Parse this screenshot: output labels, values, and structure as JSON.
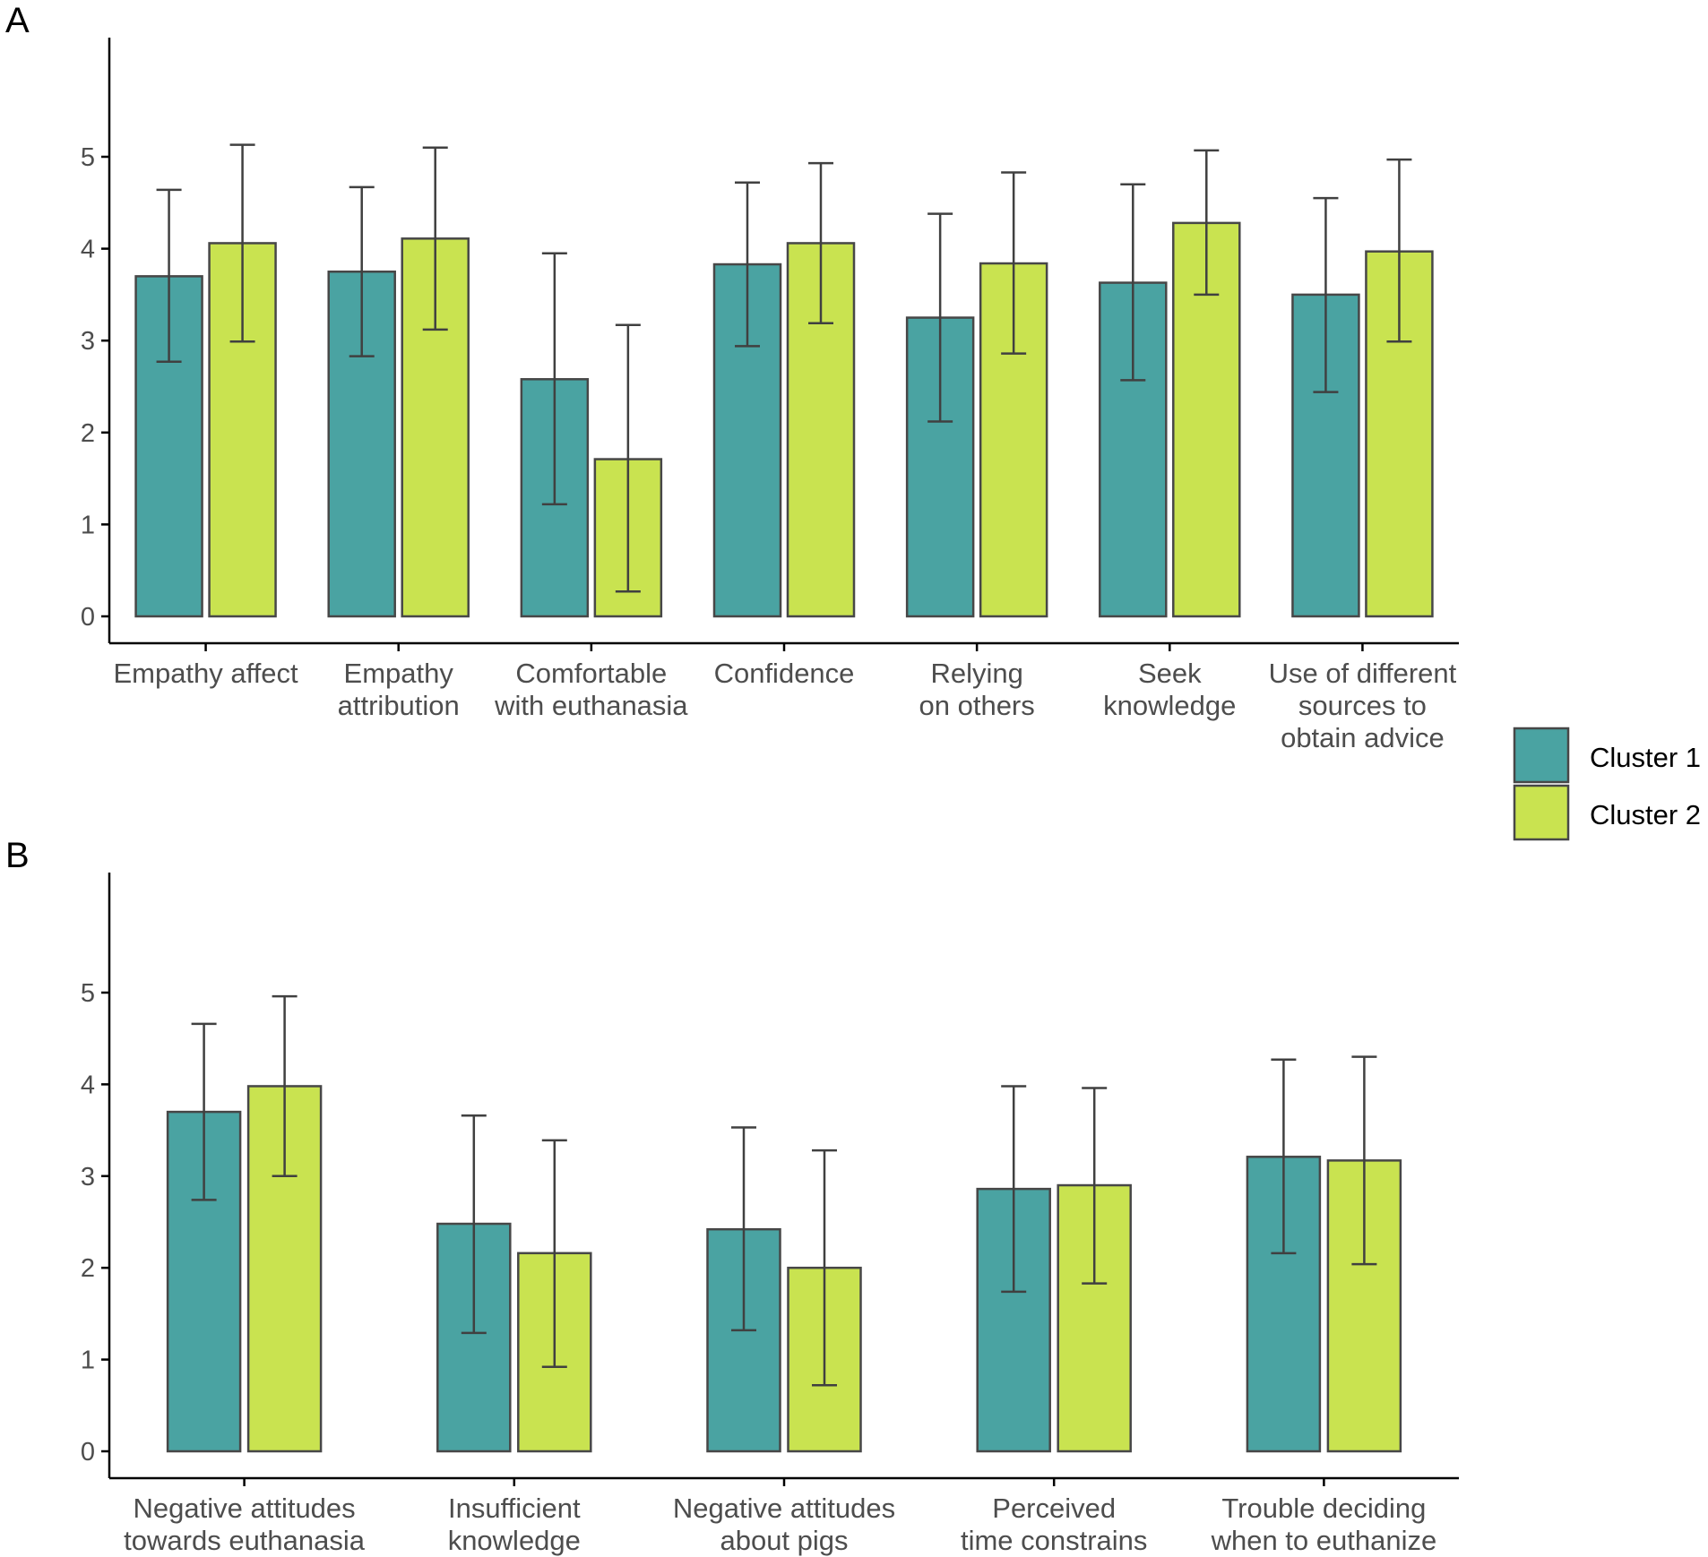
{
  "chart_data": [
    {
      "panel": "A",
      "type": "bar",
      "title": "",
      "xlabel": "",
      "ylabel": "",
      "ylim": [
        -0.3,
        6.45
      ],
      "yticks": [
        0,
        1,
        2,
        3,
        4,
        5
      ],
      "grid": false,
      "categories": [
        "Empathy affect",
        "Empathy attribution",
        "Comfortable with euthanasia",
        "Confidence",
        "Relying on others",
        "Seek knowledge",
        "Use of different sources to obtain advice"
      ],
      "category_label_lines": [
        [
          "Empathy affect"
        ],
        [
          "Empathy",
          "attribution"
        ],
        [
          "Comfortable",
          "with euthanasia"
        ],
        [
          "Confidence"
        ],
        [
          "Relying",
          "on others"
        ],
        [
          "Seek",
          "knowledge"
        ],
        [
          "Use of different",
          "sources to",
          "obtain advice"
        ]
      ],
      "series": [
        {
          "name": "Cluster 1",
          "values": [
            3.7,
            3.75,
            2.58,
            3.83,
            3.25,
            3.63,
            3.5
          ],
          "error_low": [
            2.77,
            2.83,
            1.22,
            2.94,
            2.12,
            2.57,
            2.44
          ],
          "error_high": [
            4.64,
            4.67,
            3.95,
            4.72,
            4.38,
            4.7,
            4.55
          ]
        },
        {
          "name": "Cluster 2",
          "values": [
            4.06,
            4.11,
            1.71,
            4.06,
            3.84,
            4.28,
            3.97
          ],
          "error_low": [
            2.99,
            3.12,
            0.27,
            3.19,
            2.86,
            3.5,
            2.99
          ],
          "error_high": [
            5.13,
            5.1,
            3.17,
            4.93,
            4.83,
            5.07,
            4.97
          ]
        }
      ]
    },
    {
      "panel": "B",
      "type": "bar",
      "title": "",
      "xlabel": "",
      "ylabel": "",
      "ylim": [
        -0.3,
        6.45
      ],
      "yticks": [
        0,
        1,
        2,
        3,
        4,
        5
      ],
      "grid": false,
      "categories": [
        "Negative attitudes towards euthanasia",
        "Insufficient knowledge",
        "Negative attitudes about pigs",
        "Perceived time constrains",
        "Trouble deciding when to euthanize"
      ],
      "category_label_lines": [
        [
          "Negative attitudes",
          "towards euthanasia"
        ],
        [
          "Insufficient",
          "knowledge"
        ],
        [
          "Negative attitudes",
          "about pigs"
        ],
        [
          "Perceived",
          "time constrains"
        ],
        [
          "Trouble deciding",
          "when to euthanize"
        ]
      ],
      "series": [
        {
          "name": "Cluster 1",
          "values": [
            3.7,
            2.48,
            2.42,
            2.86,
            3.21
          ],
          "error_low": [
            2.74,
            1.29,
            1.32,
            1.74,
            2.16
          ],
          "error_high": [
            4.66,
            3.66,
            3.53,
            3.98,
            4.27
          ]
        },
        {
          "name": "Cluster 2",
          "values": [
            3.98,
            2.16,
            2.0,
            2.9,
            3.17
          ],
          "error_low": [
            3.0,
            0.92,
            0.72,
            1.83,
            2.04
          ],
          "error_high": [
            4.96,
            3.39,
            3.28,
            3.96,
            4.3
          ]
        }
      ]
    }
  ],
  "legend": {
    "items": [
      {
        "label": "Cluster 1",
        "color": "#4aa3a2"
      },
      {
        "label": "Cluster 2",
        "color": "#c9e350"
      }
    ]
  },
  "colors": {
    "cluster1": "#4aa3a2",
    "cluster2": "#c9e350",
    "bar_outline": "#474747",
    "errorbar": "#404040",
    "axis": "#000000",
    "tick_text": "#4d4d4d"
  }
}
